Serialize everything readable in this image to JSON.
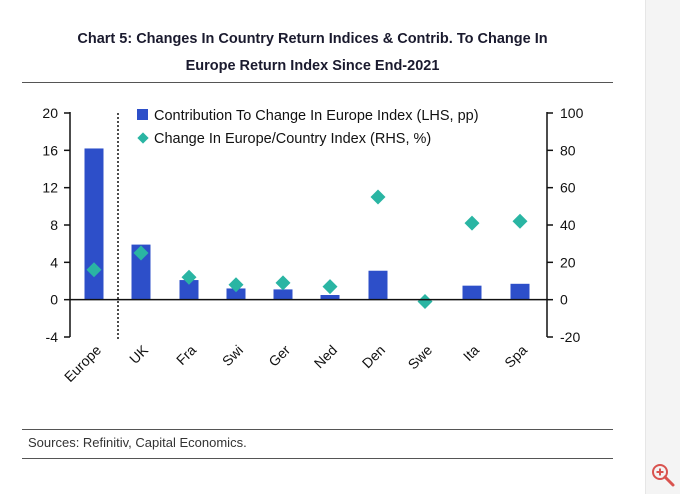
{
  "title_line1": "Chart 5: Changes In Country Return Indices & Contrib. To Change In",
  "title_line2": "Europe Return Index Since End-2021",
  "source": "Sources: Refinitiv, Capital Economics.",
  "colors": {
    "bar": "#2d4fc9",
    "diamond": "#2ab5a3",
    "title": "#1a1a2e"
  },
  "chart_data": {
    "type": "bar",
    "categories": [
      "Europe",
      "UK",
      "Fra",
      "Swi",
      "Ger",
      "Ned",
      "Den",
      "Swe",
      "Ita",
      "Spa"
    ],
    "series": [
      {
        "name": "Contribution To Change In Europe Index (LHS, pp)",
        "axis": "left",
        "kind": "bar",
        "values": [
          16.2,
          5.9,
          2.1,
          1.2,
          1.1,
          0.5,
          3.1,
          0,
          1.5,
          1.7
        ]
      },
      {
        "name": "Change In Europe/Country Index (RHS, %)",
        "axis": "right",
        "kind": "scatter",
        "values": [
          16,
          25,
          12,
          8,
          9,
          7,
          55,
          -1,
          41,
          42
        ]
      }
    ],
    "left_axis": {
      "min": -4,
      "max": 20,
      "ticks": [
        20,
        16,
        12,
        8,
        4,
        0,
        -4
      ]
    },
    "right_axis": {
      "min": -20,
      "max": 100,
      "ticks": [
        100,
        80,
        60,
        40,
        20,
        0,
        -20
      ]
    },
    "separator_after": "Europe",
    "legend_position": "top"
  }
}
